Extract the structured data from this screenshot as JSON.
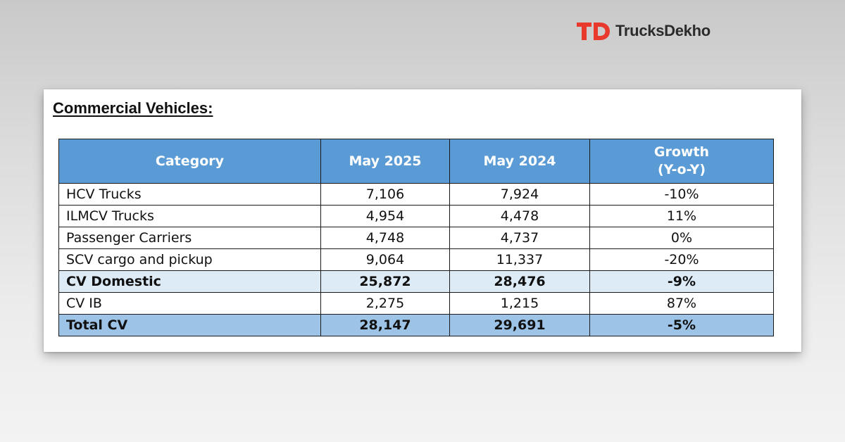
{
  "brand": {
    "name": "TrucksDekho",
    "accent_color": "#e8392c",
    "logo_icon": "td-logo-icon"
  },
  "document": {
    "title": "Commercial Vehicles:"
  },
  "table": {
    "header": {
      "category": "Category",
      "may_2025": "May 2025",
      "may_2024": "May 2024",
      "growth_line1": "Growth",
      "growth_line2": "(Y-o-Y)"
    },
    "header_color": "#5b9bd5",
    "subtotal_color": "#ddebf7",
    "total_color": "#9dc3e6",
    "rows": [
      {
        "category": "HCV Trucks",
        "may_2025": "7,106",
        "may_2024": "7,924",
        "growth": "-10%"
      },
      {
        "category": "ILMCV Trucks",
        "may_2025": "4,954",
        "may_2024": "4,478",
        "growth": "11%"
      },
      {
        "category": "Passenger Carriers",
        "may_2025": "4,748",
        "may_2024": "4,737",
        "growth": "0%"
      },
      {
        "category": "SCV cargo and pickup",
        "may_2025": "9,064",
        "may_2024": "11,337",
        "growth": "-20%"
      },
      {
        "category": "CV Domestic",
        "may_2025": "25,872",
        "may_2024": "28,476",
        "growth": "-9%"
      },
      {
        "category": "CV IB",
        "may_2025": "2,275",
        "may_2024": "1,215",
        "growth": "87%"
      },
      {
        "category": "Total CV",
        "may_2025": "28,147",
        "may_2024": "29,691",
        "growth": "-5%"
      }
    ]
  }
}
